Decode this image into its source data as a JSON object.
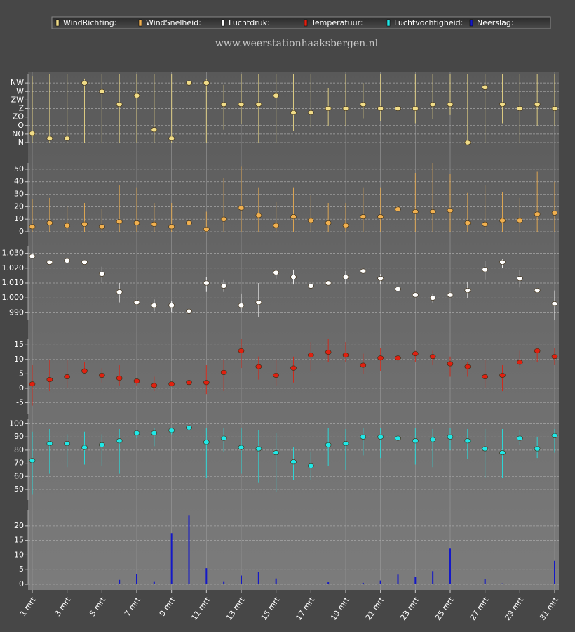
{
  "chart_data": {
    "type": "multi-panel",
    "subtitle": "www.weerstationhaaksbergen.nl",
    "categories": [
      "1 mrt",
      null,
      "3 mrt",
      null,
      "5 mrt",
      null,
      "7 mrt",
      null,
      "9 mrt",
      null,
      "11 mrt",
      null,
      "13 mrt",
      null,
      "15 mrt",
      null,
      "17 mrt",
      null,
      "19 mrt",
      null,
      "21 mrt",
      null,
      "23 mrt",
      null,
      "25 mrt",
      null,
      "27 mrt",
      null,
      "29 mrt",
      null,
      "31 mrt"
    ],
    "grid": true,
    "panels": [
      {
        "type": "range",
        "ylim": [
          0,
          360
        ],
        "yticks": [
          {
            "value": 0,
            "label": "N"
          },
          {
            "value": 45,
            "label": "NO"
          },
          {
            "value": 90,
            "label": "O"
          },
          {
            "value": 135,
            "label": "ZO"
          },
          {
            "value": 180,
            "label": "Z"
          },
          {
            "value": 225,
            "label": "ZW"
          },
          {
            "value": 270,
            "label": "W"
          },
          {
            "value": 315,
            "label": "NW"
          }
        ],
        "series": [
          {
            "name": "WindRichting:",
            "color": "#f0dc88",
            "values": [
              49,
              22,
              22,
              315,
              270,
              202,
              248,
              68,
              22,
              315,
              315,
              202,
              202,
              202,
              248,
              158,
              158,
              180,
              180,
              202,
              180,
              180,
              180,
              202,
              202,
              0,
              292,
              202,
              180,
              202,
              180
            ],
            "low": [
              0,
              0,
              0,
              0,
              0,
              0,
              0,
              0,
              0,
              0,
              0,
              68,
              98,
              0,
              0,
              60,
              80,
              87,
              87,
              128,
              113,
              113,
              102,
              125,
              145,
              0,
              0,
              102,
              0,
              90,
              90
            ],
            "high": [
              352,
              360,
              360,
              338,
              360,
              360,
              360,
              360,
              360,
              360,
              338,
              305,
              360,
              360,
              360,
              360,
              360,
              288,
              360,
              315,
              360,
              360,
              360,
              360,
              360,
              360,
              360,
              360,
              360,
              360,
              360
            ]
          }
        ]
      },
      {
        "type": "range",
        "ylim": [
          0,
          55
        ],
        "yticks": [
          0,
          10,
          20,
          30,
          40,
          50
        ],
        "series": [
          {
            "name": "WindSnelheid:",
            "color": "#f0b050",
            "values": [
              4,
              7,
              5,
              6,
              4,
              8,
              7,
              6,
              4,
              7,
              2,
              10,
              19,
              13,
              5,
              12,
              9,
              7,
              5,
              12,
              12,
              18,
              16,
              16,
              17,
              7,
              6,
              9,
              9,
              14,
              15
            ],
            "low": [
              0,
              0,
              0,
              0,
              0,
              0,
              0,
              0,
              0,
              0,
              0,
              0,
              0,
              0,
              0,
              0,
              0,
              0,
              0,
              0,
              0,
              0,
              0,
              0,
              0,
              0,
              0,
              0,
              0,
              0,
              0
            ],
            "high": [
              26,
              27,
              20,
              23,
              18,
              37,
              35,
              23,
              23,
              35,
              16,
              43,
              52,
              35,
              24,
              35,
              29,
              23,
              23,
              35,
              35,
              43,
              47,
              55,
              46,
              31,
              37,
              32,
              27,
              48,
              40
            ]
          }
        ]
      },
      {
        "type": "range",
        "ylim": [
          985,
          1035
        ],
        "yticks": [
          990,
          {
            "value": 1000,
            "label": "1.000"
          },
          {
            "value": 1010,
            "label": "1.010"
          },
          {
            "value": 1020,
            "label": "1.020"
          },
          {
            "value": 1030,
            "label": "1.030"
          }
        ],
        "series": [
          {
            "name": "Luchtdruk:",
            "color": "#ffffff",
            "values": [
              1028,
              1024,
              1025,
              1024,
              1016,
              1004,
              997,
              995,
              995,
              991,
              1010,
              1008,
              995,
              997,
              1017,
              1014,
              1008,
              1010,
              1014,
              1018,
              1013,
              1006,
              1002,
              1000,
              1002,
              1005,
              1019,
              1024,
              1013,
              1005,
              996
            ],
            "low": [
              1027,
              1023,
              1024,
              1023,
              1010,
              997,
              996,
              991,
              990,
              987,
              1004,
              1004,
              990,
              987,
              1013,
              1009,
              1007,
              1009,
              1009,
              1017,
              1009,
              1003,
              1001,
              997,
              1001,
              1000,
              1012,
              1020,
              1007,
              1004,
              985
            ],
            "high": [
              1030,
              1025,
              1026,
              1025,
              1021,
              1010,
              998,
              999,
              998,
              1004,
              1014,
              1012,
              1003,
              1010,
              1018,
              1019,
              1009,
              1011,
              1018,
              1019,
              1016,
              1010,
              1003,
              1003,
              1004,
              1011,
              1025,
              1026,
              1019,
              1006,
              1005
            ]
          }
        ]
      },
      {
        "type": "range",
        "ylim": [
          -9,
          17
        ],
        "yticks": [
          -5,
          0,
          5,
          10,
          15
        ],
        "series": [
          {
            "name": "Temperatuur:",
            "color": "#e02010",
            "values": [
              1.5,
              3,
              4,
              6,
              4.5,
              3.5,
              2.5,
              1,
              1.5,
              2,
              2,
              5.5,
              13,
              7.5,
              4.5,
              7,
              11.5,
              12.5,
              11.5,
              8,
              10.5,
              10.5,
              12,
              11,
              8.5,
              7.5,
              4,
              4.5,
              9,
              13,
              11
            ],
            "low": [
              -6,
              -1,
              0,
              5,
              2,
              1,
              1,
              -1,
              1,
              1,
              -2,
              -1,
              7,
              3,
              1,
              2,
              6,
              9,
              9,
              5,
              6,
              8,
              9,
              8,
              4,
              4,
              0,
              -1,
              7,
              9,
              8
            ],
            "high": [
              8,
              10,
              10,
              9,
              7,
              8,
              3,
              4,
              2,
              3,
              8,
              10,
              17,
              11,
              10,
              11,
              16,
              17,
              16,
              12,
              14,
              12,
              13,
              13,
              11,
              9,
              10,
              8,
              13,
              14,
              14
            ]
          }
        ]
      },
      {
        "type": "range",
        "ylim": [
          42,
          104
        ],
        "yticks": [
          50,
          60,
          70,
          80,
          90,
          100
        ],
        "series": [
          {
            "name": "Luchtvochtigheid:",
            "color": "#20e8e8",
            "values": [
              72,
              85,
              85,
              82,
              84,
              87,
              93,
              93,
              95,
              97,
              86,
              89,
              82,
              81,
              78,
              71,
              68,
              84,
              85,
              90,
              90,
              89,
              87,
              88,
              90,
              87,
              81,
              78,
              89,
              81,
              91
            ],
            "low": [
              46,
              62,
              67,
              69,
              68,
              62,
              89,
              83,
              92,
              96,
              59,
              79,
              62,
              55,
              48,
              57,
              57,
              68,
              65,
              76,
              74,
              78,
              69,
              67,
              80,
              73,
              59,
              59,
              84,
              74,
              78
            ],
            "high": [
              94,
              96,
              92,
              94,
              92,
              96,
              95,
              97,
              97,
              98,
              97,
              97,
              97,
              95,
              93,
              82,
              79,
              97,
              96,
              97,
              97,
              96,
              97,
              96,
              97,
              96,
              96,
              96,
              95,
              90,
              96
            ]
          }
        ]
      },
      {
        "type": "bar",
        "ylim": [
          0,
          25.5
        ],
        "yticks": [
          0,
          5,
          10,
          15,
          20
        ],
        "series": [
          {
            "name": "Neerslag:",
            "color": "#1418c8",
            "values": [
              0,
              0,
              0,
              0,
              0,
              1.5,
              3.5,
              0.8,
              17.5,
              23.5,
              5.5,
              0.8,
              3,
              4.3,
              2,
              0,
              0,
              0.7,
              0,
              0.5,
              1.3,
              3.3,
              2.5,
              4.5,
              12.2,
              0,
              1.8,
              0.3,
              0,
              0,
              8
            ]
          }
        ]
      }
    ]
  }
}
